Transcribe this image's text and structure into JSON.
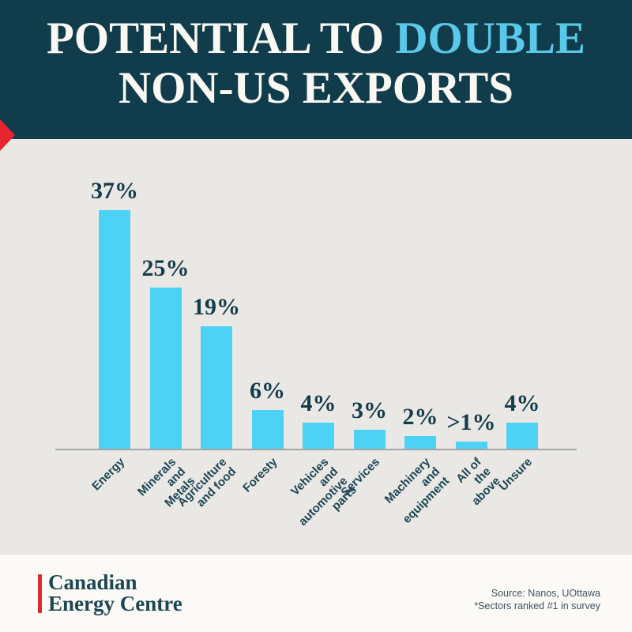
{
  "header": {
    "title_prefix": "POTENTIAL TO ",
    "title_accent": "DOUBLE",
    "title_line2": "NON-US EXPORTS"
  },
  "chart_data": {
    "type": "bar",
    "title": "POTENTIAL TO DOUBLE NON-US EXPORTS",
    "categories": [
      "Energy",
      "Minerals\nand Metals",
      "Agriculture\nand food",
      "Foresty",
      "Vehicles and\nautomotive parts",
      "Services",
      "Machinery and\nequipment",
      "All of the above",
      "Unsure"
    ],
    "values": [
      37,
      25,
      19,
      6,
      4,
      3,
      2,
      1,
      4
    ],
    "value_labels": [
      "37%",
      "25%",
      "19%",
      "6%",
      "4%",
      "3%",
      "2%",
      ">1%",
      "4%"
    ],
    "xlabel": "",
    "ylabel": "",
    "ylim": [
      0,
      40
    ],
    "grid": false,
    "legend": "none",
    "bar_color": "#4dd2f5",
    "value_label_color": "#143c4c"
  },
  "footer": {
    "logo_line1": "Canadian",
    "logo_line2": "Energy Centre",
    "source_line1": "Source: Nanos, UOttawa",
    "source_line2": "*Sectors ranked #1 in survey"
  },
  "colors": {
    "header_bg": "#113c4b",
    "title_text": "#faf8f3",
    "accent_cyan": "#5ac8e8",
    "bar_cyan": "#4dd2f5",
    "dark_teal_text": "#143c4c",
    "panel_bg": "#e9e8e5",
    "footer_bg": "#fbfaf7",
    "red_accent": "#e8242f",
    "axis_line": "#a5a5a5",
    "source_text": "#3c5460"
  }
}
